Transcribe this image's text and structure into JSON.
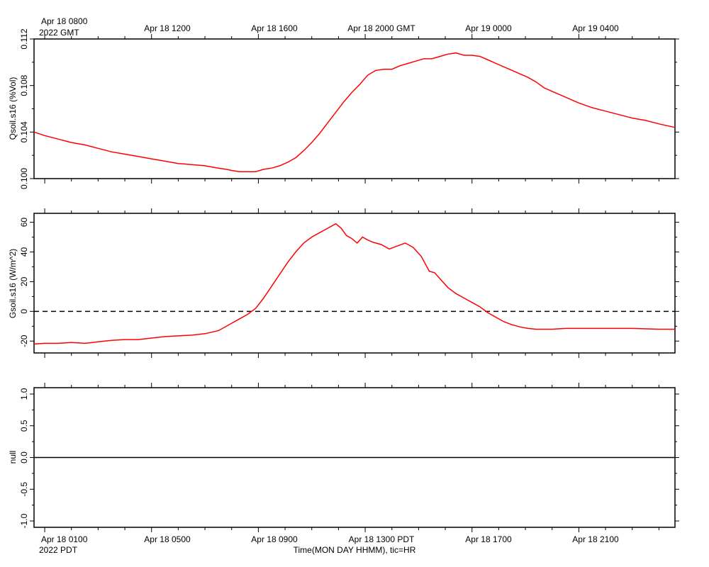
{
  "top_time_axis": {
    "first_label": "Apr 18 0800",
    "first_sublabel": "2022 GMT",
    "labels": [
      "Apr 18 1200",
      "Apr 18 1600",
      "Apr 18 2000 GMT",
      "Apr 19 0000",
      "Apr 19 0400"
    ]
  },
  "bottom_time_axis": {
    "first_label": "Apr 18 0100",
    "first_sublabel": "2022 PDT",
    "labels": [
      "Apr 18 0500",
      "Apr 18 0900",
      "Apr 18 1300 PDT",
      "Apr 18 1700",
      "Apr 18 2100"
    ],
    "xlabel": "Time(MON DAY HHMM), tic=HR"
  },
  "colors": {
    "series": "#ff0000",
    "axes": "#000000"
  },
  "chart_data": [
    {
      "type": "line",
      "ylabel": "Qsoil.s16 (%Vol)",
      "x_units": "hours since Apr 18 00:00 PDT",
      "xlim": [
        0.6,
        24.6
      ],
      "ylim": [
        0.1,
        0.112
      ],
      "yticks": [
        "0.100",
        "0.104",
        "0.108",
        "0.112"
      ],
      "ytick_values": [
        0.1,
        0.104,
        0.108,
        0.112
      ],
      "series": [
        {
          "x": [
            0.6,
            1.0,
            1.5,
            2.0,
            2.5,
            3.0,
            3.5,
            4.0,
            4.5,
            5.0,
            5.5,
            6.0,
            6.5,
            7.0,
            7.5,
            7.8,
            8.0,
            8.3,
            8.6,
            8.9,
            9.2,
            9.5,
            9.8,
            10.1,
            10.4,
            10.7,
            11.0,
            11.3,
            11.6,
            11.9,
            12.2,
            12.5,
            12.8,
            13.1,
            13.4,
            13.7,
            14.0,
            14.3,
            14.6,
            14.9,
            15.2,
            15.5,
            15.8,
            16.1,
            16.4,
            16.7,
            17.0,
            17.3,
            17.6,
            17.9,
            18.2,
            18.5,
            18.8,
            19.1,
            19.4,
            19.7,
            20.0,
            20.5,
            21.0,
            21.5,
            22.0,
            22.5,
            23.0,
            23.5,
            24.0,
            24.6
          ],
          "y": [
            0.104,
            0.1037,
            0.1034,
            0.1031,
            0.1029,
            0.1026,
            0.1023,
            0.1021,
            0.1019,
            0.1017,
            0.1015,
            0.1013,
            0.1012,
            0.1011,
            0.1009,
            0.1008,
            0.1007,
            0.1006,
            0.1006,
            0.1006,
            0.1008,
            0.1009,
            0.1011,
            0.1014,
            0.1018,
            0.1024,
            0.1031,
            0.1039,
            0.1048,
            0.1057,
            0.1066,
            0.1074,
            0.1081,
            0.1089,
            0.1093,
            0.1094,
            0.1094,
            0.1097,
            0.1099,
            0.1101,
            0.1103,
            0.1103,
            0.1105,
            0.1107,
            0.1108,
            0.1106,
            0.1106,
            0.1105,
            0.1102,
            0.1099,
            0.1096,
            0.1093,
            0.109,
            0.1087,
            0.1083,
            0.1078,
            0.1075,
            0.107,
            0.1065,
            0.1061,
            0.1058,
            0.1055,
            0.1052,
            0.105,
            0.1047,
            0.1044
          ]
        }
      ]
    },
    {
      "type": "line",
      "ylabel": "Gsoil.s16 (W/m^2)",
      "x_units": "hours since Apr 18 00:00 PDT",
      "xlim": [
        0.6,
        24.6
      ],
      "ylim": [
        -28,
        66
      ],
      "yticks": [
        "-20",
        "0",
        "20",
        "40",
        "60"
      ],
      "ytick_values": [
        -20,
        0,
        20,
        40,
        60
      ],
      "reference_line": {
        "y": 0,
        "style": "dashed"
      },
      "series": [
        {
          "x": [
            0.6,
            1.0,
            1.5,
            2.0,
            2.5,
            3.0,
            3.5,
            4.0,
            4.5,
            5.0,
            5.5,
            6.0,
            6.5,
            7.0,
            7.5,
            8.0,
            8.3,
            8.6,
            8.9,
            9.2,
            9.5,
            9.8,
            10.1,
            10.4,
            10.7,
            11.0,
            11.3,
            11.6,
            11.9,
            12.1,
            12.3,
            12.5,
            12.7,
            12.9,
            13.1,
            13.3,
            13.6,
            13.9,
            14.2,
            14.5,
            14.8,
            15.1,
            15.4,
            15.6,
            15.8,
            16.1,
            16.4,
            16.7,
            17.0,
            17.3,
            17.6,
            17.9,
            18.2,
            18.5,
            18.8,
            19.1,
            19.4,
            19.7,
            20.0,
            20.5,
            21.0,
            22.0,
            23.0,
            24.0,
            24.6
          ],
          "y": [
            -22,
            -21.5,
            -21.5,
            -21,
            -21.5,
            -20.5,
            -19.5,
            -19,
            -19,
            -18,
            -17,
            -16.5,
            -16,
            -15,
            -13,
            -8,
            -5,
            -2,
            2,
            9,
            17,
            25,
            33,
            40,
            46,
            50,
            53,
            56,
            59,
            56,
            51,
            49,
            46,
            50,
            48,
            46.5,
            45,
            42,
            44,
            46,
            43,
            37,
            27,
            26,
            22,
            16,
            12,
            9,
            6,
            3,
            -1,
            -4,
            -7,
            -9,
            -10.5,
            -11.5,
            -12,
            -12,
            -12,
            -11.5,
            -11.5,
            -11.5,
            -11.5,
            -12,
            -12
          ]
        }
      ]
    },
    {
      "type": "line",
      "ylabel": "null",
      "x_units": "hours since Apr 18 00:00 PDT",
      "xlim": [
        0.6,
        24.6
      ],
      "ylim": [
        -1.1,
        1.1
      ],
      "yticks": [
        "-1.0",
        "-0.5",
        "0.0",
        "0.5",
        "1.0"
      ],
      "ytick_values": [
        -1.0,
        -0.5,
        0.0,
        0.5,
        1.0
      ],
      "series": [
        {
          "x": [
            0.6,
            24.6
          ],
          "y": [
            0,
            0
          ]
        }
      ]
    }
  ]
}
